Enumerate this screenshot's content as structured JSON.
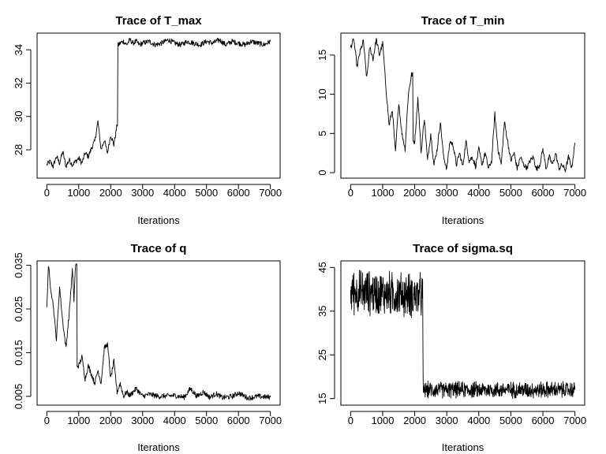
{
  "chart_data": [
    {
      "type": "line",
      "title": "Trace of T_max",
      "xlabel": "Iterations",
      "ylabel": "",
      "xlim": [
        0,
        7000
      ],
      "ylim": [
        26.3,
        35.0
      ],
      "xticks": [
        0,
        1000,
        2000,
        3000,
        4000,
        5000,
        6000,
        7000
      ],
      "yticks": [
        28,
        30,
        32,
        34
      ],
      "grid": false,
      "legend": "none",
      "series": [
        {
          "color": "#000000",
          "x": [
            0,
            100,
            200,
            300,
            400,
            500,
            600,
            700,
            800,
            900,
            1000,
            1100,
            1200,
            1300,
            1400,
            1500,
            1600,
            1700,
            1800,
            1900,
            2000,
            2100,
            2200,
            2250,
            2300,
            2400,
            2500,
            2600,
            2700,
            2800,
            2900,
            3000,
            3200,
            3400,
            3600,
            3800,
            4000,
            4200,
            4400,
            4600,
            4800,
            5000,
            5200,
            5400,
            5600,
            5800,
            6000,
            6200,
            6400,
            6600,
            6800,
            7000
          ],
          "y": [
            27.1,
            27.3,
            27.0,
            27.6,
            27.2,
            27.9,
            27.0,
            27.4,
            27.1,
            27.3,
            27.5,
            27.2,
            27.8,
            27.6,
            28.1,
            28.5,
            29.7,
            28.0,
            28.6,
            27.8,
            28.9,
            28.3,
            29.5,
            34.3,
            34.4,
            34.5,
            34.3,
            34.6,
            34.4,
            34.5,
            34.3,
            34.4,
            34.5,
            34.3,
            34.4,
            34.6,
            34.4,
            34.3,
            34.5,
            34.4,
            34.3,
            34.5,
            34.4,
            34.6,
            34.3,
            34.5,
            34.4,
            34.3,
            34.5,
            34.4,
            34.3,
            34.5
          ]
        }
      ]
    },
    {
      "type": "line",
      "title": "Trace of T_min",
      "xlabel": "Iterations",
      "ylabel": "",
      "xlim": [
        0,
        7000
      ],
      "ylim": [
        -0.7,
        17.8
      ],
      "xticks": [
        0,
        1000,
        2000,
        3000,
        4000,
        5000,
        6000,
        7000
      ],
      "yticks": [
        0,
        5,
        10,
        15
      ],
      "grid": false,
      "legend": "none",
      "series": [
        {
          "color": "#000000",
          "x": [
            0,
            100,
            200,
            300,
            400,
            500,
            600,
            700,
            800,
            900,
            1000,
            1100,
            1200,
            1300,
            1400,
            1500,
            1600,
            1700,
            1800,
            1900,
            2000,
            2100,
            2200,
            2300,
            2400,
            2500,
            2600,
            2700,
            2800,
            2900,
            3000,
            3100,
            3200,
            3300,
            3400,
            3500,
            3600,
            3700,
            3800,
            3900,
            4000,
            4100,
            4200,
            4300,
            4400,
            4500,
            4600,
            4700,
            4800,
            4900,
            5000,
            5100,
            5200,
            5300,
            5400,
            5500,
            5600,
            5700,
            5800,
            5900,
            6000,
            6100,
            6200,
            6300,
            6400,
            6500,
            6600,
            6700,
            6800,
            6900,
            7000
          ],
          "y": [
            16.0,
            17.0,
            13.5,
            15.5,
            16.8,
            12.0,
            16.0,
            14.5,
            17.0,
            15.0,
            16.5,
            11.0,
            6.0,
            8.0,
            2.5,
            9.0,
            5.0,
            3.0,
            10.0,
            12.5,
            4.0,
            9.5,
            2.5,
            7.0,
            1.5,
            5.0,
            1.0,
            3.0,
            6.5,
            2.0,
            0.5,
            4.0,
            3.5,
            1.0,
            2.5,
            0.8,
            4.0,
            1.5,
            2.0,
            0.8,
            3.0,
            1.0,
            2.5,
            0.5,
            1.5,
            7.5,
            3.0,
            1.0,
            6.5,
            4.0,
            1.5,
            2.5,
            0.5,
            2.0,
            1.0,
            0.6,
            1.5,
            2.0,
            0.4,
            1.0,
            3.0,
            0.5,
            2.0,
            1.0,
            2.5,
            0.5,
            1.0,
            0.3,
            2.0,
            0.6,
            3.8
          ]
        }
      ]
    },
    {
      "type": "line",
      "title": "Trace of q",
      "xlabel": "Iterations",
      "ylabel": "",
      "xlim": [
        0,
        7000
      ],
      "ylim": [
        0.003,
        0.036
      ],
      "xticks": [
        0,
        1000,
        2000,
        3000,
        4000,
        5000,
        6000,
        7000
      ],
      "yticks": [
        0.005,
        0.015,
        0.025,
        0.035
      ],
      "grid": false,
      "legend": "none",
      "series": [
        {
          "color": "#000000",
          "x": [
            0,
            50,
            100,
            200,
            300,
            400,
            500,
            600,
            700,
            800,
            850,
            900,
            1000,
            1100,
            1200,
            1300,
            1400,
            1500,
            1600,
            1700,
            1800,
            1900,
            2000,
            2100,
            2200,
            2300,
            2400,
            2500,
            2600,
            2800,
            3000,
            3200,
            3500,
            4000,
            4300,
            4500,
            4700,
            4900,
            5100,
            5300,
            5500,
            5800,
            6000,
            6300,
            6600,
            7000
          ],
          "y": [
            0.025,
            0.035,
            0.031,
            0.026,
            0.018,
            0.03,
            0.022,
            0.016,
            0.024,
            0.034,
            0.027,
            0.035,
            0.012,
            0.014,
            0.009,
            0.012,
            0.01,
            0.008,
            0.011,
            0.008,
            0.016,
            0.017,
            0.009,
            0.013,
            0.006,
            0.008,
            0.005,
            0.006,
            0.0052,
            0.0068,
            0.005,
            0.0055,
            0.005,
            0.0052,
            0.0048,
            0.0068,
            0.005,
            0.006,
            0.0048,
            0.0056,
            0.0047,
            0.005,
            0.0058,
            0.0046,
            0.005,
            0.0048
          ]
        }
      ]
    },
    {
      "type": "line",
      "title": "Trace of sigma.sq",
      "xlabel": "Iterations",
      "ylabel": "",
      "xlim": [
        0,
        7000
      ],
      "ylim": [
        13.5,
        46.5
      ],
      "xticks": [
        0,
        1000,
        2000,
        3000,
        4000,
        5000,
        6000,
        7000
      ],
      "yticks": [
        15,
        25,
        35,
        45
      ],
      "grid": false,
      "legend": "none",
      "series": [
        {
          "color": "#000000",
          "x": [
            0,
            2250,
            2260,
            7000
          ],
          "y": [
            39.5,
            38.5,
            17.0,
            17.0
          ],
          "noise_band": [
            [
              0,
              2250,
              6.0
            ],
            [
              2260,
              7000,
              2.2
            ]
          ]
        }
      ]
    }
  ]
}
